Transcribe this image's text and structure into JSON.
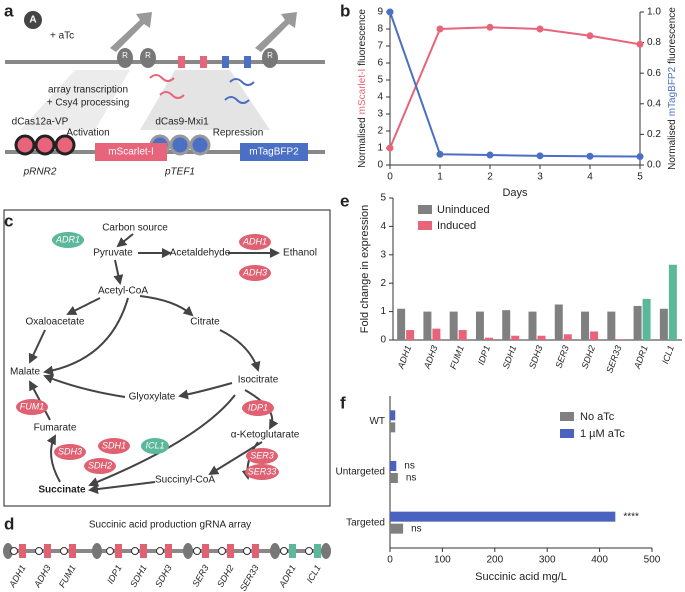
{
  "panel_labels": [
    "a",
    "b",
    "c",
    "d",
    "e",
    "f"
  ],
  "panel_a": {
    "inducer_badge": "A",
    "inducer": "+ aTc",
    "repressor_badge": "R",
    "process": [
      "array transcription",
      "+ Csy4 processing"
    ],
    "activator": "dCas12a-VP",
    "activation": "Activation",
    "repressor": "dCas9-Mxi1",
    "repression": "Repression",
    "promoters": [
      "pRNR2",
      "pTEF1"
    ],
    "reporters": [
      "mScarlet-I",
      "mTagBFP2"
    ]
  },
  "panel_c": {
    "metabolites": [
      "Carbon source",
      "Pyruvate",
      "Acetaldehyde",
      "Ethanol",
      "Acetyl-CoA",
      "Oxaloacetate",
      "Citrate",
      "Malate",
      "Isocitrate",
      "Glyoxylate",
      "Fumarate",
      "α-Ketoglutarate",
      "Succinyl-CoA",
      "Succinate"
    ],
    "enzymes": [
      "ADR1",
      "ADH1",
      "ADH3",
      "FUM1",
      "IDP1",
      "SDH1",
      "SDH3",
      "SDH2",
      "ICL1",
      "SER3",
      "SER33"
    ]
  },
  "panel_d": {
    "title": "Succinic acid production gRNA array",
    "genes": [
      "ADH1",
      "ADH3",
      "FUM1",
      "IDP1",
      "SDH1",
      "SDH3",
      "SER3",
      "SDH2",
      "SER33",
      "ADR1",
      "ICL1"
    ]
  },
  "chart_data": [
    {
      "type": "line",
      "xlabel": "Days",
      "ylabel": [
        "Normalised",
        "fluorescence"
      ],
      "x": [
        0,
        1,
        2,
        3,
        4,
        5
      ],
      "xlim": [
        0,
        5
      ],
      "xticks": [
        0,
        1,
        2,
        3,
        4,
        5
      ],
      "ylim": [
        0,
        9
      ],
      "yticks": [
        0,
        1,
        2,
        3,
        4,
        5,
        6,
        7,
        8,
        9
      ],
      "y2lim": [
        0,
        1.0
      ],
      "y2ticks": [
        {
          "value": 0,
          "label": "0.0"
        },
        0.2,
        0.4,
        0.6,
        0.8,
        {
          "value": 1,
          "label": "1.0"
        }
      ],
      "series": [
        {
          "name": "mScarlet-I",
          "color": "#e8647a",
          "values": [
            1.0,
            8.0,
            8.1,
            8.0,
            7.6,
            7.1
          ]
        },
        {
          "name": "mTagBFP2",
          "color": "#4a6fc4",
          "axis": "y2",
          "values": [
            1.0,
            0.07,
            0.065,
            0.06,
            0.057,
            0.055
          ]
        }
      ]
    },
    {
      "type": "bar",
      "ylabel": "Fold change in expression",
      "categories": [
        "ADH1",
        "ADH3",
        "FUM1",
        "IDP1",
        "SDH1",
        "SDH3",
        "SER3",
        "SDH2",
        "SER33",
        "ADR1",
        "ICL1"
      ],
      "ylim": [
        0,
        5
      ],
      "yticks": [
        0,
        1,
        2,
        3,
        4,
        5
      ],
      "series": [
        {
          "name": "Uninduced",
          "color": "#808080",
          "values": [
            1.1,
            1.0,
            1.0,
            1.0,
            1.05,
            1.0,
            1.25,
            1.0,
            1.0,
            1.2,
            1.1
          ]
        },
        {
          "name": "Induced",
          "color": "#e8647a",
          "values": [
            0.35,
            0.4,
            0.35,
            0.08,
            0.15,
            0.15,
            0.2,
            0.3,
            0.03,
            1.45,
            2.65
          ],
          "point_colors": [
            "#e8647a",
            "#e8647a",
            "#e8647a",
            "#e8647a",
            "#e8647a",
            "#e8647a",
            "#e8647a",
            "#e8647a",
            "#e8647a",
            "#5cb89a",
            "#5cb89a"
          ]
        }
      ]
    },
    {
      "type": "hbar",
      "xlabel": "Succinic acid mg/L",
      "categories": [
        "WT",
        "Untargeted",
        "Targeted"
      ],
      "xlim": [
        0,
        500
      ],
      "xticks": [
        0,
        100,
        200,
        300,
        400,
        500
      ],
      "series": [
        {
          "name": "No aTc",
          "color": "#808080",
          "values": [
            10,
            15,
            25
          ],
          "significance": [
            null,
            "ns",
            "ns"
          ]
        },
        {
          "name": "1 µM aTc",
          "color": "#4a62c0",
          "values": [
            10,
            12,
            430
          ],
          "significance": [
            null,
            "ns",
            "****"
          ]
        }
      ]
    }
  ]
}
